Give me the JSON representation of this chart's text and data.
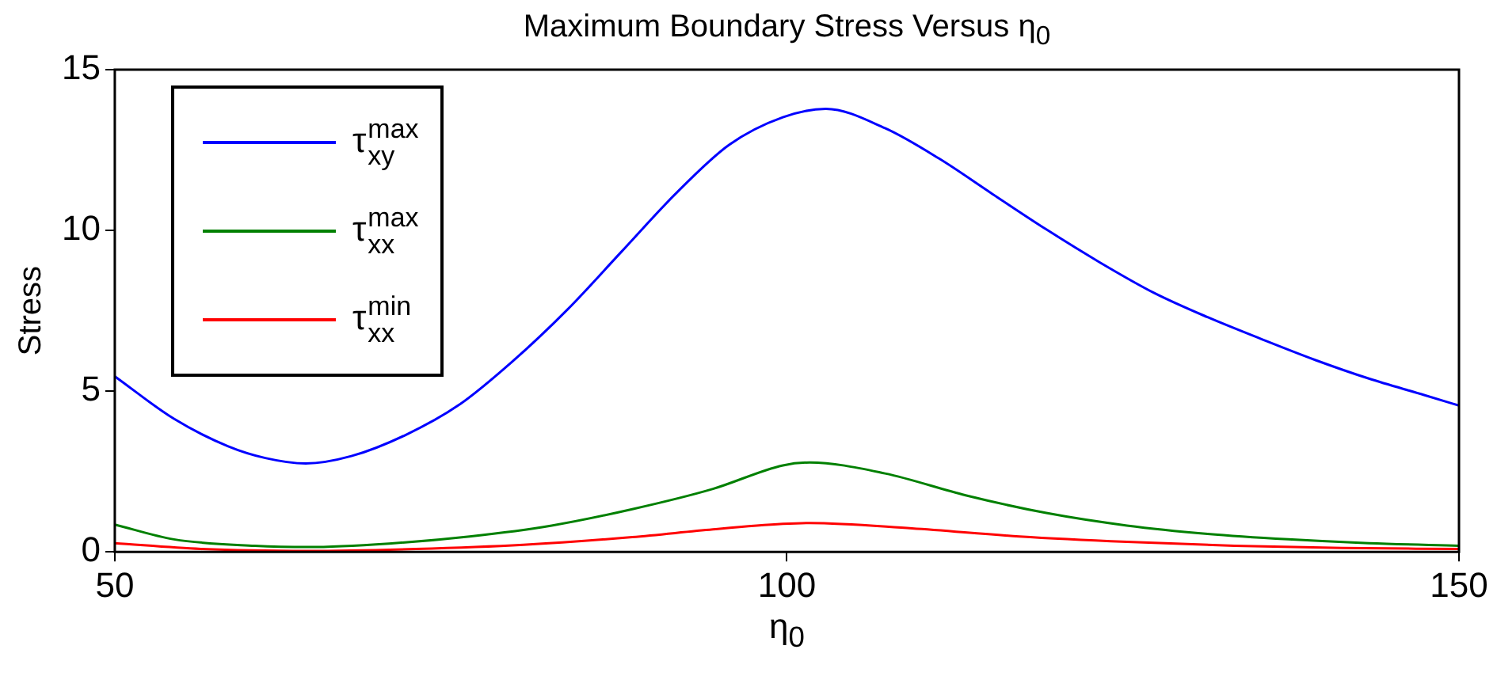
{
  "chart_data": {
    "type": "line",
    "title": "Maximum Boundary Stress Versus η$_{0}$",
    "xlabel": "η$_{0}$",
    "ylabel": "Stress",
    "xlim": [
      50,
      150
    ],
    "xticks": [
      50,
      100,
      150
    ],
    "ylim": [
      0,
      15
    ],
    "yticks": [
      0,
      5,
      10,
      15
    ],
    "grid": false,
    "legend": "top left",
    "marker": "none",
    "line_style": "solid",
    "series": [
      {
        "name": "τ$^{max}$$_{xy}$",
        "color": "#0000ff",
        "x": [
          50,
          54.4,
          58.4,
          61.2,
          64.2,
          67.6,
          71.6,
          75.6,
          79.6,
          83.7,
          87.7,
          91.7,
          95.7,
          99.7,
          102.9,
          107.3,
          111.3,
          115.3,
          119.3,
          123.3,
          127.3,
          131.3,
          135.3,
          139.3,
          143.3,
          147.4,
          150
        ],
        "values": [
          5.46,
          4.14,
          3.29,
          2.92,
          2.75,
          2.98,
          3.63,
          4.57,
          5.93,
          7.55,
          9.34,
          11.13,
          12.66,
          13.52,
          13.78,
          13.18,
          12.24,
          11.13,
          10.03,
          9.0,
          8.06,
          7.3,
          6.62,
          5.97,
          5.39,
          4.88,
          4.55
        ]
      },
      {
        "name": "τ$^{max}$$_{xx}$",
        "color": "#008000",
        "x": [
          50,
          54.4,
          60.4,
          64.4,
          70.4,
          76.4,
          82.5,
          88.5,
          94.5,
          99.7,
          101.7,
          107.3,
          113.3,
          119.3,
          125.3,
          131.3,
          137.3,
          143.3,
          150
        ],
        "values": [
          0.85,
          0.39,
          0.19,
          0.15,
          0.26,
          0.48,
          0.82,
          1.33,
          1.96,
          2.69,
          2.78,
          2.44,
          1.76,
          1.21,
          0.82,
          0.56,
          0.39,
          0.27,
          0.19
        ]
      },
      {
        "name": "τ$^{min}$$_{xx}$",
        "color": "#ff0000",
        "x": [
          50,
          56.4,
          64.4,
          72.4,
          80.4,
          88.5,
          94.5,
          99.7,
          101.7,
          109.3,
          117.3,
          125.3,
          133.3,
          141.3,
          150
        ],
        "values": [
          0.27,
          0.09,
          0.03,
          0.09,
          0.22,
          0.46,
          0.7,
          0.87,
          0.9,
          0.73,
          0.48,
          0.31,
          0.19,
          0.12,
          0.09
        ]
      }
    ]
  }
}
